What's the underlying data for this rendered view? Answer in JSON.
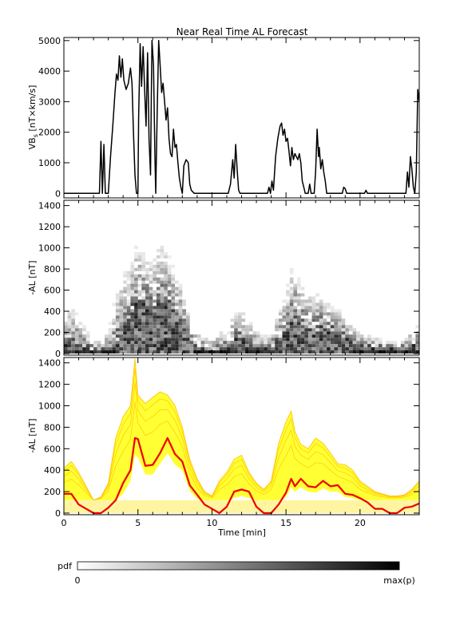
{
  "title": "Near Real Time AL Forecast",
  "colors": {
    "axis": "#000000",
    "vbs_line": "#000000",
    "band_fill": "#ffff33",
    "band_edge": "#ffc000",
    "band_floor": "#fff5a0",
    "median_line": "#ee0000",
    "pdf_min": "#ffffff",
    "pdf_max": "#000000"
  },
  "colorbar": {
    "label": "pdf",
    "min_label": "0",
    "max_label": "max(p)"
  },
  "chart_data": [
    {
      "type": "line",
      "name": "vbs-panel",
      "ylabel_main": "VB",
      "ylabel_sub": "s",
      "ylabel_tail": " [nT×km/s]",
      "xlim": [
        0,
        24
      ],
      "ylim": [
        -150,
        5100
      ],
      "yticks": [
        0,
        1000,
        2000,
        3000,
        4000,
        5000
      ],
      "show_xtick_labels": false,
      "series": [
        {
          "points": [
            [
              0,
              0
            ],
            [
              2.4,
              0
            ],
            [
              2.5,
              1700
            ],
            [
              2.6,
              0
            ],
            [
              2.7,
              1600
            ],
            [
              2.8,
              0
            ],
            [
              3.0,
              0
            ],
            [
              3.15,
              1200
            ],
            [
              3.3,
              2200
            ],
            [
              3.45,
              3300
            ],
            [
              3.55,
              3900
            ],
            [
              3.65,
              3700
            ],
            [
              3.75,
              4500
            ],
            [
              3.85,
              3800
            ],
            [
              3.95,
              4400
            ],
            [
              4.05,
              3700
            ],
            [
              4.2,
              3400
            ],
            [
              4.35,
              3600
            ],
            [
              4.5,
              4100
            ],
            [
              4.6,
              3600
            ],
            [
              4.7,
              2000
            ],
            [
              4.8,
              600
            ],
            [
              4.9,
              0
            ],
            [
              5.0,
              0
            ],
            [
              5.05,
              2500
            ],
            [
              5.15,
              4900
            ],
            [
              5.25,
              3500
            ],
            [
              5.35,
              4800
            ],
            [
              5.45,
              3400
            ],
            [
              5.55,
              2200
            ],
            [
              5.65,
              4600
            ],
            [
              5.75,
              1800
            ],
            [
              5.85,
              600
            ],
            [
              5.9,
              3000
            ],
            [
              5.95,
              5000
            ],
            [
              6.05,
              4200
            ],
            [
              6.15,
              1200
            ],
            [
              6.2,
              0
            ],
            [
              6.3,
              2600
            ],
            [
              6.4,
              5000
            ],
            [
              6.5,
              4200
            ],
            [
              6.6,
              3300
            ],
            [
              6.7,
              3600
            ],
            [
              6.8,
              3000
            ],
            [
              6.9,
              2400
            ],
            [
              7.0,
              2800
            ],
            [
              7.1,
              1800
            ],
            [
              7.2,
              1300
            ],
            [
              7.3,
              1200
            ],
            [
              7.4,
              2100
            ],
            [
              7.5,
              1500
            ],
            [
              7.6,
              1600
            ],
            [
              7.7,
              1000
            ],
            [
              7.8,
              500
            ],
            [
              7.9,
              200
            ],
            [
              8.0,
              0
            ],
            [
              8.1,
              900
            ],
            [
              8.25,
              1100
            ],
            [
              8.4,
              1000
            ],
            [
              8.5,
              300
            ],
            [
              8.6,
              100
            ],
            [
              8.8,
              0
            ],
            [
              11.1,
              0
            ],
            [
              11.25,
              300
            ],
            [
              11.4,
              1100
            ],
            [
              11.5,
              500
            ],
            [
              11.6,
              1600
            ],
            [
              11.7,
              800
            ],
            [
              11.8,
              100
            ],
            [
              11.9,
              0
            ],
            [
              13.75,
              0
            ],
            [
              13.85,
              200
            ],
            [
              13.95,
              0
            ],
            [
              14.05,
              400
            ],
            [
              14.15,
              100
            ],
            [
              14.3,
              1200
            ],
            [
              14.45,
              1800
            ],
            [
              14.6,
              2200
            ],
            [
              14.7,
              2300
            ],
            [
              14.8,
              1900
            ],
            [
              14.9,
              2100
            ],
            [
              15.0,
              1700
            ],
            [
              15.1,
              1800
            ],
            [
              15.2,
              1400
            ],
            [
              15.3,
              900
            ],
            [
              15.4,
              1500
            ],
            [
              15.5,
              1100
            ],
            [
              15.6,
              1300
            ],
            [
              15.7,
              1200
            ],
            [
              15.8,
              1100
            ],
            [
              15.9,
              1300
            ],
            [
              16.0,
              1000
            ],
            [
              16.1,
              400
            ],
            [
              16.2,
              200
            ],
            [
              16.3,
              0
            ],
            [
              16.5,
              0
            ],
            [
              16.6,
              300
            ],
            [
              16.7,
              0
            ],
            [
              16.9,
              0
            ],
            [
              17.0,
              700
            ],
            [
              17.1,
              2100
            ],
            [
              17.2,
              1200
            ],
            [
              17.25,
              1500
            ],
            [
              17.35,
              800
            ],
            [
              17.45,
              1100
            ],
            [
              17.55,
              700
            ],
            [
              17.65,
              400
            ],
            [
              17.75,
              0
            ],
            [
              18.8,
              0
            ],
            [
              18.9,
              200
            ],
            [
              19.0,
              150
            ],
            [
              19.1,
              0
            ],
            [
              20.3,
              0
            ],
            [
              20.4,
              100
            ],
            [
              20.5,
              0
            ],
            [
              23.1,
              0
            ],
            [
              23.2,
              700
            ],
            [
              23.3,
              200
            ],
            [
              23.4,
              1200
            ],
            [
              23.5,
              800
            ],
            [
              23.6,
              200
            ],
            [
              23.7,
              0
            ],
            [
              23.8,
              700
            ],
            [
              23.9,
              3400
            ],
            [
              24.0,
              3000
            ]
          ]
        }
      ]
    },
    {
      "type": "heatmap",
      "name": "pdf-panel",
      "ylabel": "-AL [nT]",
      "xlim": [
        0,
        24
      ],
      "ylim": [
        -15,
        1450
      ],
      "yticks": [
        0,
        200,
        400,
        600,
        800,
        1000,
        1200,
        1400
      ],
      "show_xtick_labels": false,
      "bin_dx": 0.25,
      "bin_dy": 30,
      "envelope": {
        "x": [
          0,
          0.5,
          1,
          1.5,
          2,
          2.5,
          3,
          3.5,
          4,
          4.5,
          5,
          5.5,
          6,
          6.5,
          7,
          7.5,
          8,
          8.5,
          9,
          9.5,
          10,
          10.5,
          11,
          11.5,
          12,
          12.5,
          13,
          13.5,
          14,
          14.5,
          15,
          15.5,
          16,
          16.5,
          17,
          17.5,
          18,
          18.5,
          19,
          19.5,
          20,
          20.5,
          21,
          21.5,
          22,
          22.5,
          23,
          23.5,
          24
        ],
        "median": [
          90,
          80,
          60,
          40,
          20,
          20,
          30,
          80,
          200,
          340,
          500,
          450,
          380,
          480,
          460,
          400,
          300,
          140,
          60,
          30,
          20,
          20,
          40,
          120,
          130,
          110,
          60,
          30,
          40,
          120,
          220,
          300,
          260,
          220,
          200,
          240,
          220,
          180,
          140,
          80,
          60,
          60,
          50,
          40,
          35,
          35,
          40,
          70,
          90
        ],
        "upper": [
          300,
          480,
          380,
          240,
          110,
          120,
          220,
          600,
          800,
          880,
          1120,
          980,
          900,
          1100,
          1000,
          800,
          660,
          340,
          200,
          150,
          130,
          200,
          280,
          380,
          420,
          360,
          220,
          170,
          180,
          420,
          620,
          920,
          700,
          600,
          620,
          560,
          480,
          440,
          360,
          260,
          200,
          190,
          150,
          140,
          120,
          120,
          140,
          220,
          280
        ]
      }
    },
    {
      "type": "area",
      "name": "forecast-panel",
      "ylabel": "-AL [nT]",
      "xlabel": "Time [min]",
      "xlim": [
        0,
        24
      ],
      "ylim": [
        -15,
        1450
      ],
      "yticks": [
        0,
        200,
        400,
        600,
        800,
        1000,
        1200,
        1400
      ],
      "xticks": [
        0,
        5,
        10,
        15,
        20
      ],
      "show_xtick_labels": true,
      "floor": 120,
      "x": [
        0,
        0.5,
        1,
        1.5,
        2,
        2.5,
        3,
        3.5,
        4,
        4.5,
        4.8,
        5,
        5.5,
        6,
        6.5,
        7,
        7.5,
        8,
        8.5,
        9,
        9.5,
        10,
        10.5,
        11,
        11.5,
        12,
        12.5,
        13,
        13.5,
        14,
        14.5,
        15,
        15.35,
        15.6,
        16,
        16.5,
        17,
        17.5,
        18,
        18.5,
        19,
        19.5,
        20,
        20.5,
        21,
        21.5,
        22,
        22.5,
        23,
        23.5,
        24
      ],
      "median": [
        180,
        180,
        80,
        40,
        0,
        0,
        50,
        120,
        280,
        400,
        700,
        690,
        440,
        450,
        560,
        700,
        550,
        480,
        260,
        170,
        80,
        40,
        0,
        60,
        200,
        220,
        200,
        60,
        0,
        0,
        80,
        190,
        320,
        250,
        320,
        250,
        240,
        300,
        250,
        260,
        180,
        170,
        140,
        100,
        40,
        40,
        0,
        0,
        50,
        60,
        90
      ],
      "upper": [
        420,
        480,
        380,
        250,
        120,
        150,
        280,
        700,
        900,
        1000,
        1440,
        1100,
        1020,
        1080,
        1130,
        1100,
        1000,
        800,
        500,
        320,
        200,
        160,
        300,
        380,
        500,
        540,
        380,
        280,
        220,
        300,
        650,
        850,
        950,
        760,
        640,
        600,
        700,
        650,
        560,
        460,
        450,
        400,
        300,
        250,
        200,
        180,
        160,
        160,
        170,
        220,
        300
      ],
      "lower": [
        120,
        120,
        120,
        120,
        120,
        120,
        120,
        120,
        180,
        300,
        540,
        520,
        360,
        360,
        460,
        560,
        450,
        400,
        210,
        130,
        120,
        120,
        120,
        120,
        140,
        160,
        140,
        120,
        120,
        120,
        120,
        150,
        240,
        200,
        240,
        200,
        190,
        230,
        200,
        200,
        150,
        140,
        120,
        120,
        120,
        120,
        120,
        120,
        120,
        120,
        120
      ]
    }
  ]
}
